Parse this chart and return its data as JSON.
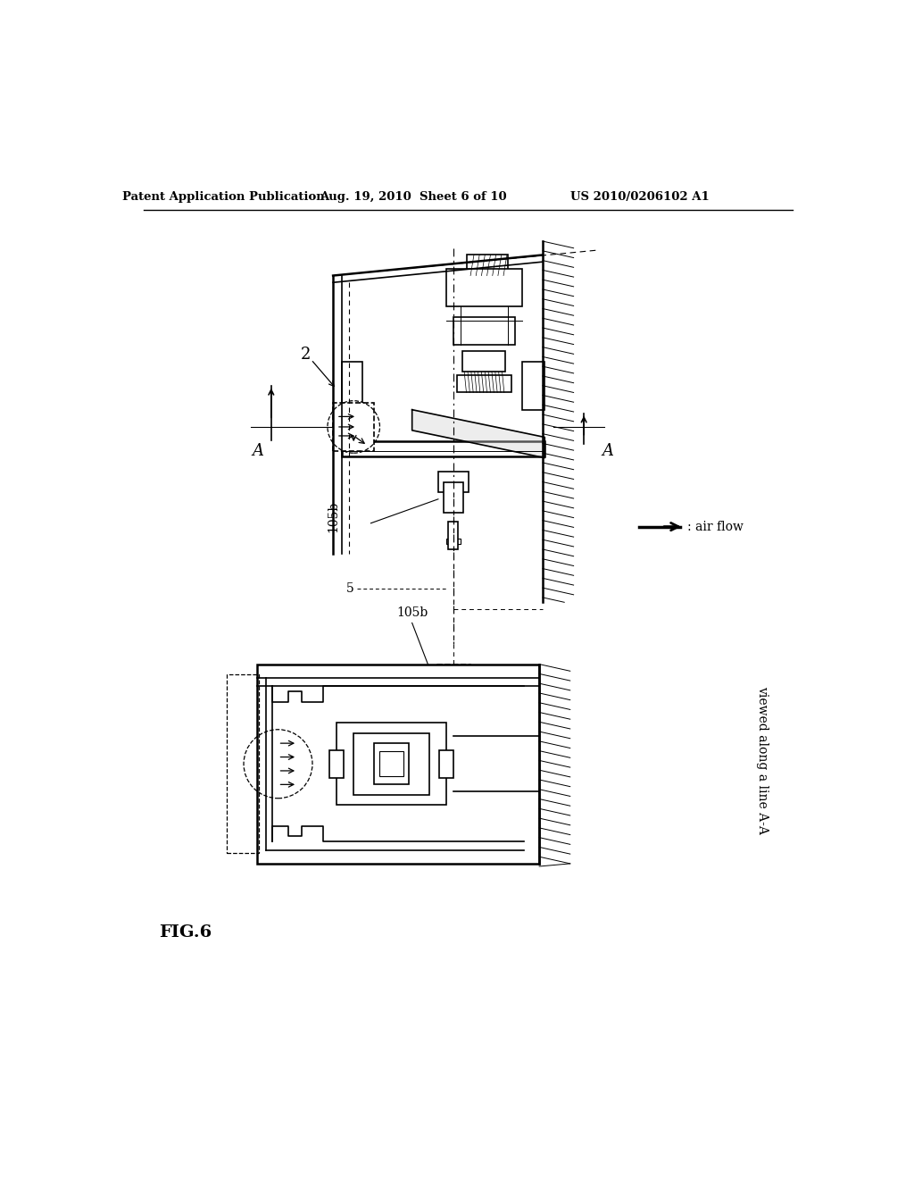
{
  "bg_color": "#ffffff",
  "header_left": "Patent Application Publication",
  "header_center": "Aug. 19, 2010  Sheet 6 of 10",
  "header_right": "US 2010/0206102 A1",
  "fig_label": "FIG.6",
  "label_2": "2",
  "label_105b_top": "105b",
  "label_5": "5",
  "label_105b_bottom": "105b",
  "label_A_left": "A",
  "label_A_right": "A",
  "label_airflow": ": air flow",
  "label_viewed": "viewed along a line A-A"
}
